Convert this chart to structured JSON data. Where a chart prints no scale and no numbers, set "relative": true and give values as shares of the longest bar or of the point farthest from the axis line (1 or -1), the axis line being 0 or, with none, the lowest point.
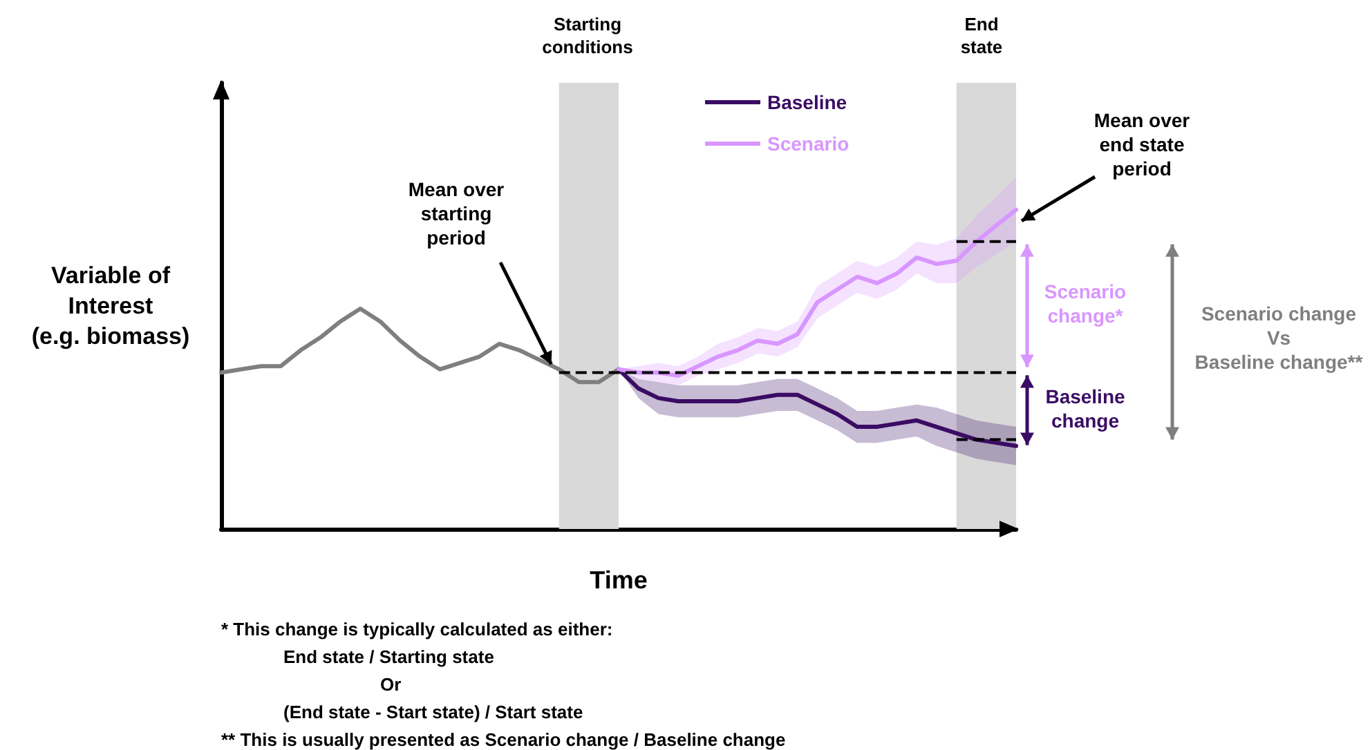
{
  "chart_data": {
    "type": "line",
    "relative": true,
    "xlabel": "Time",
    "ylabel": "Variable of\nInterest\n(e.g. biomass)",
    "categories": [
      null,
      null,
      null,
      null,
      null,
      null,
      null,
      null,
      null,
      null,
      null,
      null,
      null,
      null,
      null,
      null,
      null,
      null,
      null,
      null,
      null,
      null,
      null,
      null,
      null,
      null,
      null,
      null,
      null,
      null,
      null,
      null,
      null,
      null,
      null,
      null,
      null,
      null,
      null,
      null,
      null
    ],
    "series": [
      {
        "color": "#7f7f7f",
        "values": [
          0.49,
          0.5,
          0.51,
          0.51,
          0.56,
          0.6,
          0.65,
          0.69,
          0.65,
          0.59,
          0.54,
          0.5,
          0.52,
          0.54,
          0.58,
          0.56,
          0.53,
          0.5,
          0.46,
          0.46,
          0.5,
          null,
          null,
          null,
          null,
          null,
          null,
          null,
          null,
          null,
          null,
          null,
          null,
          null,
          null,
          null,
          null,
          null,
          null,
          null,
          null
        ]
      },
      {
        "name": "Baseline",
        "color": "#3a0c64",
        "values": [
          null,
          null,
          null,
          null,
          null,
          null,
          null,
          null,
          null,
          null,
          null,
          null,
          null,
          null,
          null,
          null,
          null,
          null,
          null,
          null,
          0.5,
          0.44,
          0.41,
          0.4,
          0.4,
          0.4,
          0.4,
          0.41,
          0.42,
          0.42,
          0.39,
          0.36,
          0.32,
          0.32,
          0.33,
          0.34,
          0.32,
          0.3,
          0.28,
          0.27,
          0.26
        ],
        "lower": [
          null,
          null,
          null,
          null,
          null,
          null,
          null,
          null,
          null,
          null,
          null,
          null,
          null,
          null,
          null,
          null,
          null,
          null,
          null,
          null,
          0.5,
          0.41,
          0.36,
          0.35,
          0.35,
          0.35,
          0.35,
          0.36,
          0.37,
          0.37,
          0.34,
          0.31,
          0.27,
          0.27,
          0.28,
          0.29,
          0.26,
          0.24,
          0.22,
          0.21,
          0.2
        ],
        "upper": [
          null,
          null,
          null,
          null,
          null,
          null,
          null,
          null,
          null,
          null,
          null,
          null,
          null,
          null,
          null,
          null,
          null,
          null,
          null,
          null,
          0.5,
          0.47,
          0.46,
          0.45,
          0.45,
          0.45,
          0.45,
          0.46,
          0.47,
          0.47,
          0.44,
          0.41,
          0.37,
          0.37,
          0.38,
          0.39,
          0.38,
          0.36,
          0.34,
          0.33,
          0.32
        ]
      },
      {
        "name": "Scenario",
        "color": "#d896ff",
        "values": [
          null,
          null,
          null,
          null,
          null,
          null,
          null,
          null,
          null,
          null,
          null,
          null,
          null,
          null,
          null,
          null,
          null,
          null,
          null,
          null,
          0.5,
          0.49,
          0.49,
          0.48,
          0.51,
          0.54,
          0.56,
          0.59,
          0.58,
          0.61,
          0.71,
          0.75,
          0.79,
          0.77,
          0.8,
          0.85,
          0.83,
          0.84,
          0.9,
          0.95,
          1.0
        ],
        "lower": [
          null,
          null,
          null,
          null,
          null,
          null,
          null,
          null,
          null,
          null,
          null,
          null,
          null,
          null,
          null,
          null,
          null,
          null,
          null,
          null,
          0.5,
          0.47,
          0.46,
          0.45,
          0.48,
          0.5,
          0.52,
          0.55,
          0.54,
          0.57,
          0.66,
          0.7,
          0.74,
          0.72,
          0.75,
          0.8,
          0.77,
          0.77,
          0.82,
          0.86,
          0.9
        ],
        "upper": [
          null,
          null,
          null,
          null,
          null,
          null,
          null,
          null,
          null,
          null,
          null,
          null,
          null,
          null,
          null,
          null,
          null,
          null,
          null,
          null,
          0.5,
          0.51,
          0.52,
          0.51,
          0.54,
          0.58,
          0.6,
          0.63,
          0.62,
          0.65,
          0.76,
          0.8,
          0.84,
          0.82,
          0.85,
          0.9,
          0.89,
          0.91,
          0.98,
          1.04,
          1.1
        ]
      },
      {
        "color": "#000000",
        "line_style": "dashed",
        "values": [
          null,
          null,
          null,
          null,
          null,
          null,
          null,
          null,
          null,
          null,
          null,
          null,
          null,
          null,
          null,
          null,
          null,
          0.49,
          0.49,
          0.49,
          0.49,
          0.49,
          0.49,
          0.49,
          0.49,
          0.49,
          0.49,
          0.49,
          0.49,
          0.49,
          0.49,
          0.49,
          0.49,
          0.49,
          0.49,
          0.49,
          0.49,
          0.49,
          0.49,
          0.49,
          0.49
        ]
      },
      {
        "color": "#000000",
        "line_style": "dashed",
        "values": [
          null,
          null,
          null,
          null,
          null,
          null,
          null,
          null,
          null,
          null,
          null,
          null,
          null,
          null,
          null,
          null,
          null,
          null,
          null,
          null,
          null,
          null,
          null,
          null,
          null,
          null,
          null,
          null,
          null,
          null,
          null,
          null,
          null,
          null,
          null,
          null,
          null,
          0.9,
          0.9,
          0.9,
          0.9
        ]
      },
      {
        "color": "#000000",
        "line_style": "dashed",
        "values": [
          null,
          null,
          null,
          null,
          null,
          null,
          null,
          null,
          null,
          null,
          null,
          null,
          null,
          null,
          null,
          null,
          null,
          null,
          null,
          null,
          null,
          null,
          null,
          null,
          null,
          null,
          null,
          null,
          null,
          null,
          null,
          null,
          null,
          null,
          null,
          null,
          null,
          0.28,
          0.28,
          0.28,
          0.28
        ]
      }
    ],
    "annotations": [
      "Starting\nconditions",
      "End\nstate",
      "Mean over\nstarting\nperiod",
      "Mean over\nend state\nperiod",
      "Scenario\nchange*",
      "Baseline\nchange",
      "Scenario change\nVs\nBaseline change**",
      "* This change is typically calculated as either:",
      "End state / Starting state",
      "Or",
      "(End state - Start state) / Start state",
      "** This is usually presented as Scenario change / Baseline change"
    ],
    "legend": "top",
    "grid": false,
    "marker": "none",
    "line_style": "solid"
  }
}
